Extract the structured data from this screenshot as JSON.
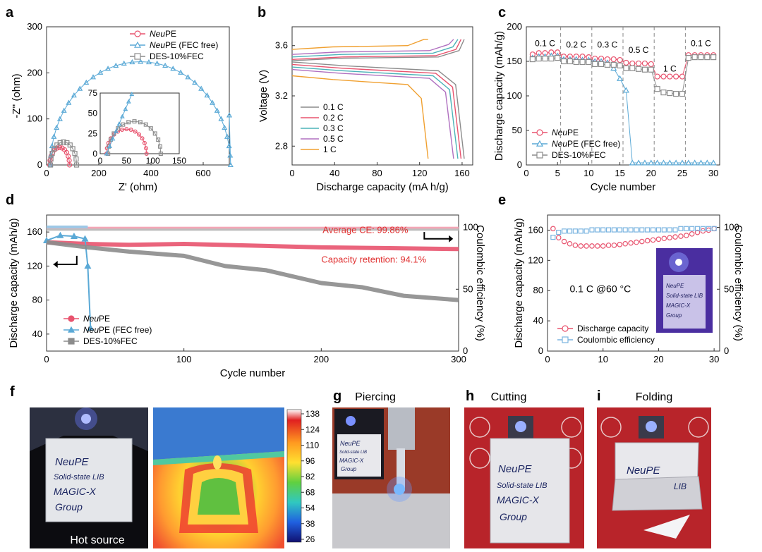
{
  "panels": {
    "a": {
      "letter": "a"
    },
    "b": {
      "letter": "b"
    },
    "c": {
      "letter": "c"
    },
    "d": {
      "letter": "d"
    },
    "e": {
      "letter": "e"
    },
    "f": {
      "letter": "f",
      "caption": "Hot source",
      "note_lines": [
        "NeuPE",
        "Solid-state LIB",
        "MAGIC-X",
        "Group"
      ]
    },
    "g": {
      "letter": "g",
      "caption": "Piercing",
      "note_lines": [
        "NeuPE",
        "Solid-state LIB",
        "MAGIC-X",
        "Group"
      ]
    },
    "h": {
      "letter": "h",
      "caption": "Cutting",
      "note_lines": [
        "NeuPE",
        "Solid-state LIB",
        "MAGIC-X",
        "Group"
      ]
    },
    "i": {
      "letter": "i",
      "caption": "Folding",
      "note_lines": [
        "NeuPE",
        "LIB"
      ]
    }
  },
  "colorbar": {
    "ticks": [
      "138",
      "124",
      "110",
      "96",
      "82",
      "68",
      "54",
      "38",
      "26"
    ]
  },
  "colors": {
    "pink": "#e8536e",
    "blue": "#5aa9d6",
    "gray": "#8c8c8c",
    "orange": "#f0a030",
    "teal": "#4bb3b8",
    "red": "#e03030",
    "purple": "#b070c0"
  },
  "chart_data": [
    {
      "id": "a",
      "type": "scatter",
      "xlabel": "Z' (ohm)",
      "ylabel": "-Z'' (ohm)",
      "xlim": [
        0,
        700
      ],
      "ylim": [
        0,
        300
      ],
      "xticks": [
        "0",
        "200",
        "400",
        "600"
      ],
      "yticks": [
        "0",
        "100",
        "200",
        "300"
      ],
      "legend": [
        {
          "italic": "Neu",
          "text": "PE"
        },
        {
          "italic": "Neu",
          "text": "PE (FEC free)"
        },
        {
          "italic": "",
          "text": "DES-10%FEC"
        }
      ],
      "series": [
        {
          "name": "NeuPE",
          "center": 50,
          "radius": 38
        },
        {
          "name": "NeuPE (FEC free)",
          "center": 360,
          "radius": 345,
          "tail": [
            [
              700,
              108
            ]
          ]
        },
        {
          "name": "DES-10%FEC",
          "center": 65,
          "radius": 50
        }
      ],
      "inset": {
        "xlim": [
          0,
          150
        ],
        "ylim": [
          0,
          75
        ],
        "xticks": [
          "0",
          "50",
          "100",
          "150"
        ],
        "yticks": [
          "0",
          "25",
          "50",
          "75"
        ]
      }
    },
    {
      "id": "b",
      "type": "line",
      "xlabel": "Discharge capacity (mA h/g)",
      "ylabel": "Voltage (V)",
      "xlim": [
        0,
        170
      ],
      "ylim": [
        2.65,
        3.75
      ],
      "xticks": [
        "0",
        "40",
        "80",
        "120",
        "160"
      ],
      "yticks": [
        "2.8",
        "3.2",
        "3.6"
      ],
      "legend": [
        "0.1 C",
        "0.2 C",
        "0.3 C",
        "0.5 C",
        "1 C"
      ],
      "series": [
        {
          "name": "0.1 C",
          "capacity": 162,
          "charge_v": 3.5,
          "discharge_v": 3.44
        },
        {
          "name": "0.2 C",
          "capacity": 159,
          "charge_v": 3.51,
          "discharge_v": 3.42
        },
        {
          "name": "0.3 C",
          "capacity": 156,
          "charge_v": 3.53,
          "discharge_v": 3.4
        },
        {
          "name": "0.5 C",
          "capacity": 152,
          "charge_v": 3.55,
          "discharge_v": 3.38
        },
        {
          "name": "1 C",
          "capacity": 128,
          "charge_v": 3.59,
          "discharge_v": 3.33
        }
      ]
    },
    {
      "id": "c",
      "type": "line",
      "xlabel": "Cycle number",
      "ylabel": "Discharge capacity (mAh/g)",
      "xlim": [
        0,
        31
      ],
      "ylim": [
        0,
        200
      ],
      "xticks": [
        "0",
        "5",
        "10",
        "15",
        "20",
        "25",
        "30"
      ],
      "yticks": [
        "0",
        "50",
        "100",
        "150",
        "200"
      ],
      "rate_labels": [
        "0.1 C",
        "0.2 C",
        "0.3 C",
        "0.5 C",
        "1 C",
        "0.1 C"
      ],
      "legend": [
        {
          "italic": "Neu",
          "text": "PE"
        },
        {
          "italic": "Neu",
          "text": "PE (FEC free)"
        },
        {
          "italic": "",
          "text": "DES-10%FEC"
        }
      ],
      "series": [
        {
          "name": "NeuPE",
          "values": [
            160,
            162,
            162,
            163,
            163,
            157,
            157,
            157,
            157,
            156,
            154,
            154,
            153,
            153,
            152,
            148,
            147,
            147,
            147,
            146,
            128,
            128,
            128,
            128,
            128,
            159,
            159,
            159,
            159,
            159
          ]
        },
        {
          "name": "NeuPE (FEC free)",
          "values": [
            155,
            157,
            157,
            158,
            158,
            153,
            153,
            153,
            152,
            152,
            150,
            150,
            148,
            140,
            125,
            108,
            3,
            3,
            3,
            3,
            3,
            3,
            3,
            3,
            3,
            3,
            3,
            3,
            3,
            3
          ]
        },
        {
          "name": "DES-10%FEC",
          "values": [
            153,
            154,
            154,
            154,
            155,
            150,
            150,
            149,
            149,
            149,
            146,
            146,
            145,
            145,
            144,
            140,
            140,
            139,
            138,
            138,
            110,
            105,
            104,
            103,
            103,
            155,
            156,
            156,
            156,
            156
          ]
        }
      ]
    },
    {
      "id": "d",
      "type": "line",
      "xlabel": "Cycle number",
      "ylabel": "Discharge capacity (mAh/g)",
      "y2label": "Coulombic efficiency (%)",
      "xlim": [
        0,
        300
      ],
      "ylim": [
        20,
        180
      ],
      "y2lim": [
        0,
        110
      ],
      "xticks": [
        "0",
        "100",
        "200",
        "300"
      ],
      "yticks": [
        "40",
        "80",
        "120",
        "160"
      ],
      "y2ticks": [
        "0",
        "50",
        "100"
      ],
      "annotations": [
        "Average CE: 99.86%",
        "Capacity retention: 94.1%"
      ],
      "legend": [
        {
          "italic": "Neu",
          "text": "PE"
        },
        {
          "italic": "Neu",
          "text": "PE (FEC free)"
        },
        {
          "italic": "",
          "text": "DES-10%FEC"
        }
      ],
      "series": [
        {
          "name": "NeuPE",
          "points": [
            [
              0,
              148
            ],
            [
              30,
              146
            ],
            [
              60,
              145
            ],
            [
              100,
              146
            ],
            [
              150,
              144
            ],
            [
              200,
              142
            ],
            [
              250,
              141
            ],
            [
              300,
              140
            ]
          ]
        },
        {
          "name": "NeuPE (FEC free)",
          "points": [
            [
              0,
              150
            ],
            [
              10,
              156
            ],
            [
              20,
              155
            ],
            [
              28,
              152
            ],
            [
              30,
              120
            ],
            [
              32,
              47
            ]
          ]
        },
        {
          "name": "DES-10%FEC",
          "points": [
            [
              0,
              148
            ],
            [
              30,
              142
            ],
            [
              60,
              137
            ],
            [
              100,
              132
            ],
            [
              130,
              120
            ],
            [
              160,
              115
            ],
            [
              200,
              100
            ],
            [
              230,
              95
            ],
            [
              260,
              85
            ],
            [
              300,
              80
            ]
          ]
        }
      ]
    },
    {
      "id": "e",
      "type": "scatter",
      "xlabel": "",
      "ylabel": "Discharge capacity (mAh/g)",
      "y2label": "Coulombic efficiency (%)",
      "xlim": [
        0,
        31
      ],
      "ylim": [
        0,
        180
      ],
      "y2lim": [
        0,
        110
      ],
      "xticks": [
        "0",
        "10",
        "20",
        "30"
      ],
      "yticks": [
        "0",
        "40",
        "80",
        "120",
        "160"
      ],
      "y2ticks": [
        "0",
        "50",
        "100"
      ],
      "annotation": "0.1 C @60 °C",
      "legend": [
        "Discharge capacity",
        "Coulombic efficiency"
      ],
      "series": [
        {
          "name": "Discharge capacity",
          "values": [
            162,
            150,
            145,
            142,
            140,
            139,
            139,
            139,
            139,
            139,
            140,
            140,
            141,
            142,
            143,
            144,
            145,
            146,
            147,
            148,
            149,
            150,
            151,
            152,
            153,
            155,
            157,
            159,
            160,
            162
          ]
        },
        {
          "name": "Coulombic efficiency",
          "values": [
            92,
            96,
            97,
            97,
            97,
            97,
            97,
            98,
            98,
            98,
            98,
            98,
            98,
            98,
            98,
            98,
            98,
            98,
            98,
            98,
            98,
            98,
            98,
            99,
            99,
            99,
            99,
            99,
            99,
            99
          ]
        }
      ]
    }
  ]
}
